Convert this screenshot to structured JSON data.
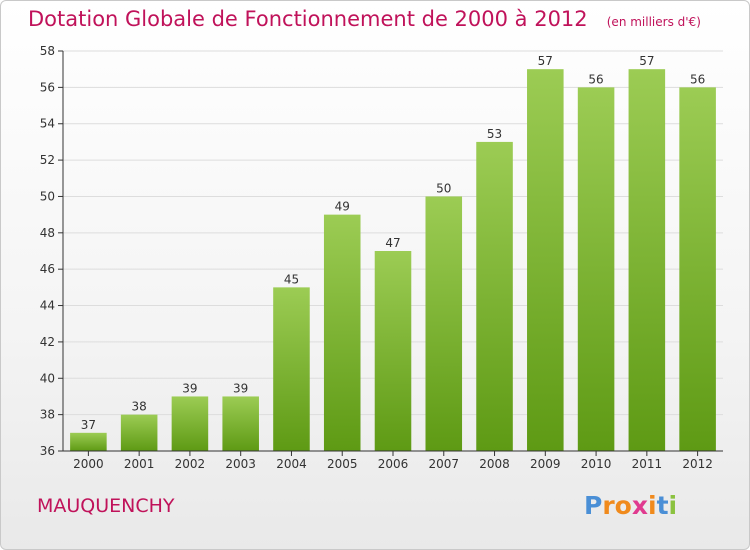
{
  "title": "Dotation Globale de Fonctionnement de 2000 à 2012",
  "unit": "(en milliers d'€)",
  "city": "MAUQUENCHY",
  "logo": {
    "letters": [
      "P",
      "r",
      "o",
      "x",
      "i",
      "t",
      "i"
    ],
    "colors": [
      "#4a8fd6",
      "#f08a1c",
      "#f08a1c",
      "#e03a8f",
      "#f08a1c",
      "#4a8fd6",
      "#8bc23f"
    ]
  },
  "colors": {
    "bar_top": "#9ccc54",
    "bar_bottom": "#5e9a14",
    "title": "#c0125a",
    "axis": "#333333",
    "grid": "#dddddd"
  },
  "chart_data": {
    "type": "bar",
    "categories": [
      "2000",
      "2001",
      "2002",
      "2003",
      "2004",
      "2005",
      "2006",
      "2007",
      "2008",
      "2009",
      "2010",
      "2011",
      "2012"
    ],
    "values": [
      37,
      38,
      39,
      39,
      45,
      49,
      47,
      50,
      53,
      57,
      56,
      57,
      56
    ],
    "data_labels": [
      "37",
      "38",
      "39",
      "39",
      "45",
      "49",
      "47",
      "50",
      "53",
      "57",
      "56",
      "57",
      "56"
    ],
    "y_ticks": [
      "36",
      "38",
      "40",
      "42",
      "44",
      "46",
      "48",
      "50",
      "52",
      "54",
      "56",
      "58"
    ],
    "ylim": [
      36,
      58
    ],
    "grid": true,
    "legend": "none"
  }
}
